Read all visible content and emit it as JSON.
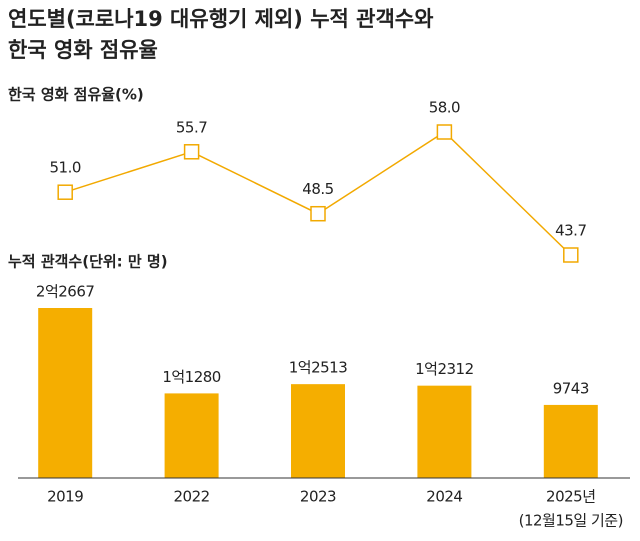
{
  "title": [
    "연도별(코로나19 대유행기 제외) 누적 관객수와",
    "한국 영화 점유율"
  ],
  "chart_data": [
    {
      "type": "line",
      "title": "한국 영화 점유율(%)",
      "values": [
        51.0,
        55.7,
        48.5,
        58.0,
        43.7
      ],
      "value_labels": [
        "51.0",
        "55.7",
        "48.5",
        "58.0",
        "43.7"
      ],
      "color": "#f2a900"
    },
    {
      "type": "bar",
      "title": "누적 관객수(단위: 만 명)",
      "categories": [
        "2019",
        "2022",
        "2023",
        "2024",
        "2025년"
      ],
      "note": "(12월15일 기준)",
      "values": [
        22667,
        11280,
        12513,
        12312,
        9743
      ],
      "value_labels": [
        "2억2667",
        "1억1280",
        "1억2513",
        "1억2312",
        "9743"
      ],
      "color": "#f5ae00"
    }
  ]
}
